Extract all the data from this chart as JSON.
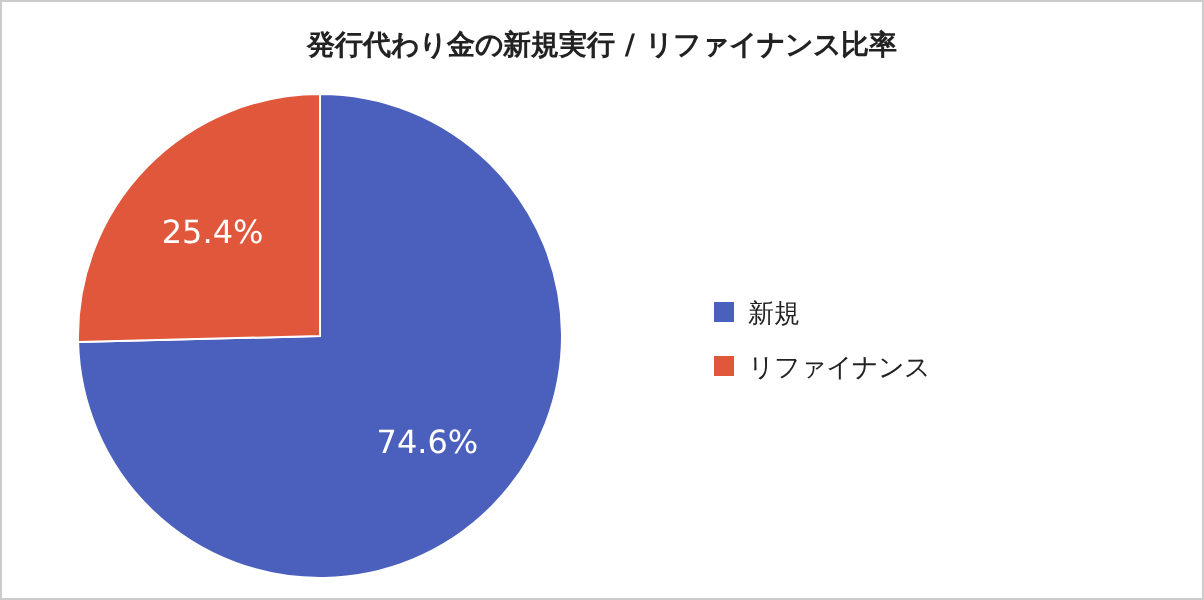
{
  "chart_data": {
    "type": "pie",
    "title": "発行代わり金の新規実行 / リファイナンス比率",
    "categories": [
      "新規",
      "リファイナンス"
    ],
    "values": [
      74.6,
      25.4
    ],
    "colors": [
      "#4b5fbd",
      "#e0573b"
    ],
    "value_labels": [
      "74.6%",
      "25.4%"
    ],
    "legend": "right"
  }
}
